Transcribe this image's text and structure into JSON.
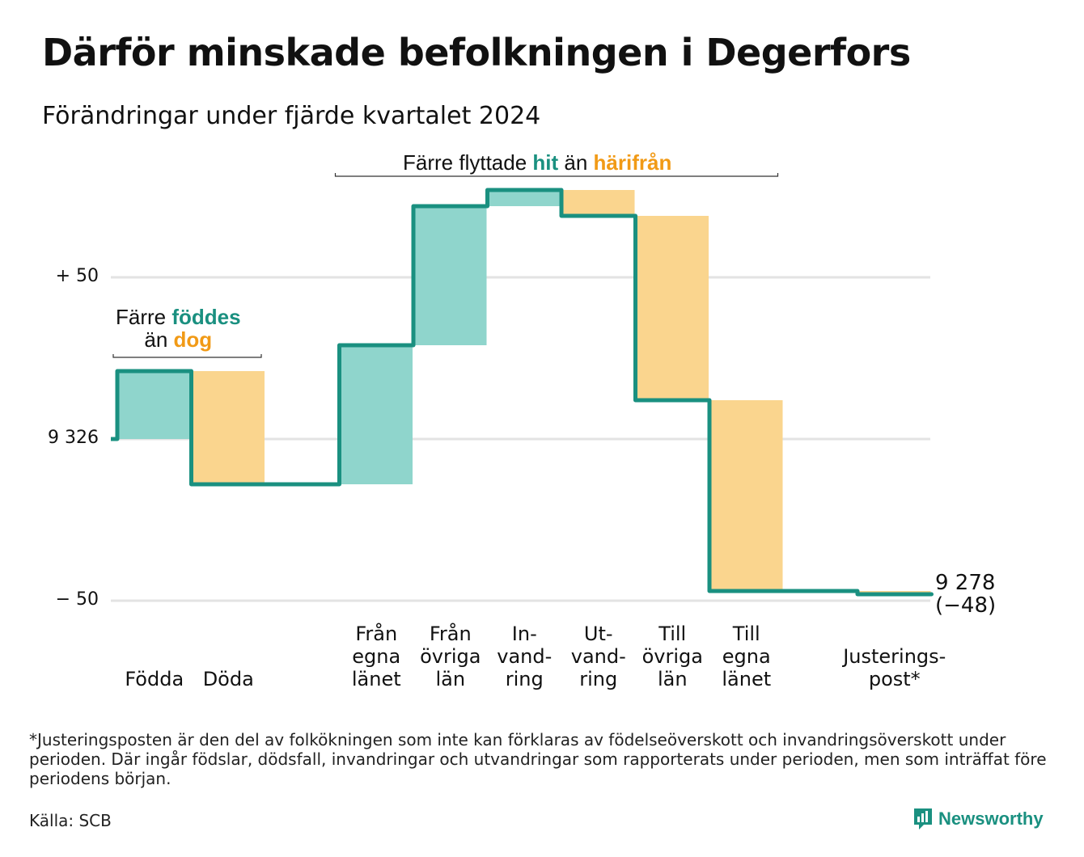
{
  "title": "Därför minskade befolkningen i Degerfors",
  "subtitle": "Förändringar under fjärde kvartalet 2024",
  "annotations": {
    "birth_death": {
      "line1": "Färre ",
      "born": "föddes",
      "line2": "än ",
      "died": "dog"
    },
    "migration": {
      "part1": "Färre flyttade ",
      "here": "hit",
      "part2": " än ",
      "away": "härifrån"
    }
  },
  "end_label": {
    "value": "9 278",
    "change": "(−48)"
  },
  "footnote": "*Justeringsposten är den del av folkökningen som inte kan förklaras av födelseöverskott och invandringsöverskott under perioden. Där ingår födslar, dödsfall, invandringar och utvandringar som rapporterats under perioden, men som inträffat före periodens början.",
  "source": "Källa: SCB",
  "logo": {
    "text": "Newsworthy",
    "icon": "newsworthy-bar-chart-icon"
  },
  "colors": {
    "increase": "#8fd5cc",
    "decrease": "#fad58e",
    "line": "#1a9080",
    "grid": "#e3e3e3",
    "accent_orange": "#f19a16"
  },
  "chart_data": {
    "type": "waterfall",
    "start": {
      "value": 9326,
      "label": "9 326"
    },
    "end": {
      "value": 9278,
      "change": -48
    },
    "y_ticks": [
      {
        "value": 50,
        "label": "+ 50"
      },
      {
        "value": 0,
        "label": "9 326"
      },
      {
        "value": -50,
        "label": "− 50"
      }
    ],
    "ylim": [
      -55,
      80
    ],
    "grid": true,
    "categories": [
      "Födda",
      "Döda",
      "Från\negna\nlänet",
      "Från\növriga\nlän",
      "In-\nvand-\nring",
      "Ut-\nvand-\nring",
      "Till\növriga\nlän",
      "Till\negna\nlänet",
      "Justerings-\npost*"
    ],
    "values": [
      21,
      -35,
      43,
      43,
      5,
      -8,
      -57,
      -59,
      -1
    ],
    "bar_categories": [
      0,
      1,
      3,
      4,
      5,
      6,
      7,
      8,
      10
    ]
  }
}
